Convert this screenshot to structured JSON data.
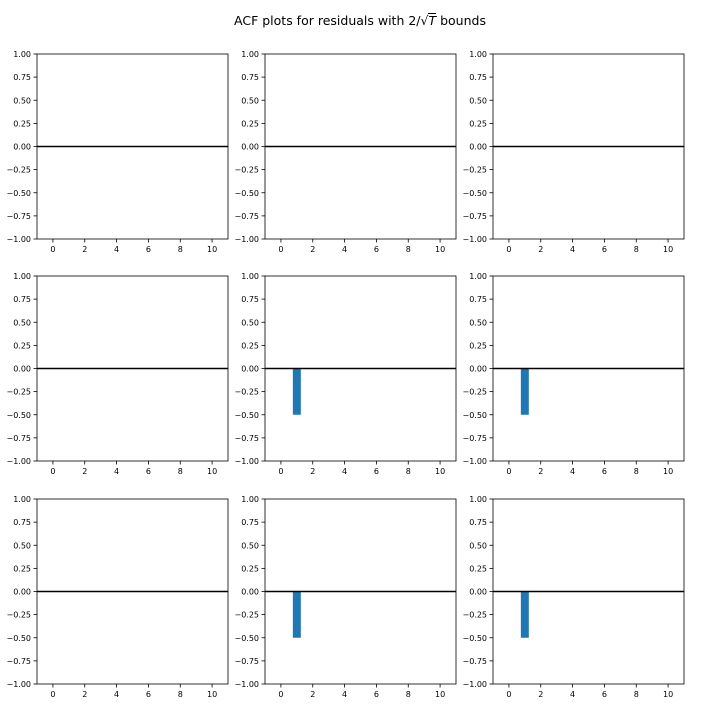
{
  "title": {
    "prefix": "ACF plots for residuals with 2/",
    "radicand": "T",
    "suffix": " bounds"
  },
  "colors": {
    "bar": "#1f77b4",
    "axis": "#000000",
    "zero_line": "#000000"
  },
  "chart_data": {
    "type": "bar",
    "grid": "3x3 subplots",
    "xlim": [
      -1,
      11
    ],
    "ylim": [
      -1.0,
      1.0
    ],
    "x_ticks": [
      "0",
      "2",
      "4",
      "6",
      "8",
      "10"
    ],
    "y_ticks": [
      "1.00",
      "0.75",
      "0.50",
      "0.25",
      "0.00",
      "−0.25",
      "−0.50",
      "−0.75",
      "−1.00"
    ],
    "zero_line": 0,
    "grid_lines": false,
    "panels": [
      {
        "row": 1,
        "col": 1,
        "bars": []
      },
      {
        "row": 1,
        "col": 2,
        "bars": []
      },
      {
        "row": 1,
        "col": 3,
        "bars": []
      },
      {
        "row": 2,
        "col": 1,
        "bars": []
      },
      {
        "row": 2,
        "col": 2,
        "bars": [
          {
            "lag": 1,
            "value": -0.5
          }
        ]
      },
      {
        "row": 2,
        "col": 3,
        "bars": [
          {
            "lag": 1,
            "value": -0.5
          }
        ]
      },
      {
        "row": 3,
        "col": 1,
        "bars": []
      },
      {
        "row": 3,
        "col": 2,
        "bars": [
          {
            "lag": 1,
            "value": -0.5
          }
        ]
      },
      {
        "row": 3,
        "col": 3,
        "bars": [
          {
            "lag": 1,
            "value": -0.5
          }
        ]
      }
    ]
  }
}
